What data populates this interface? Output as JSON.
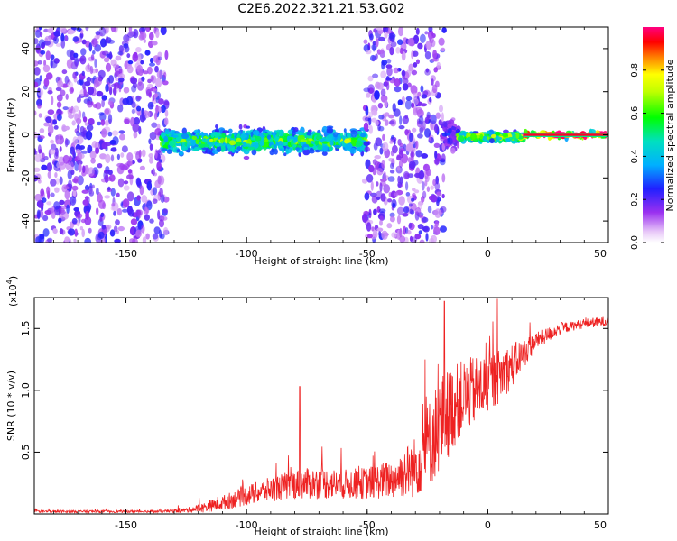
{
  "figure": {
    "title": "C2E6.2022.321.21.53.G02"
  },
  "colors": {
    "snr_line": "#ee2222",
    "spectrum_low": "#e8c8f8",
    "spectrum_mid": "#7a00e8",
    "spectrum_peak": "#ff0000"
  },
  "chart_data": [
    {
      "type": "heatmap",
      "title": "",
      "xlabel": "Height of straight line (km)",
      "ylabel": "Frequency (Hz)",
      "xlim": [
        -188,
        50
      ],
      "ylim": [
        -50,
        50
      ],
      "xticks": [
        -150,
        -100,
        -50,
        0,
        50
      ],
      "yticks": [
        -40,
        -20,
        0,
        20,
        40
      ],
      "xtick_labels": [
        "-150",
        "-100",
        "-50",
        "0",
        "50"
      ],
      "ytick_labels": [
        "-40",
        "-20",
        "0",
        "20",
        "40"
      ],
      "regions": [
        {
          "name": "noise-band",
          "x_range": [
            -188,
            -133
          ],
          "freq_range": [
            -50,
            50
          ],
          "amplitude": 0.15
        },
        {
          "name": "signal-band",
          "x_range": [
            -135,
            -50
          ],
          "freq_center": -3,
          "freq_halfwidth": 8,
          "amplitude": 0.5
        },
        {
          "name": "noise-band",
          "x_range": [
            -51,
            -18
          ],
          "freq_range": [
            -50,
            50
          ],
          "amplitude": 0.15
        },
        {
          "name": "transition",
          "x_range": [
            -18,
            -12
          ],
          "freq_center": 0,
          "freq_halfwidth": 12,
          "amplitude": 0.2
        },
        {
          "name": "signal-band",
          "x_range": [
            -12,
            15
          ],
          "freq_center": -1,
          "freq_halfwidth": 3,
          "amplitude": 0.6
        },
        {
          "name": "carrier-line",
          "x_range": [
            15,
            50
          ],
          "freq_center": 0,
          "freq_halfwidth": 2,
          "amplitude": 0.95
        }
      ],
      "colorbar": {
        "label": "Normalized spectral amplitude",
        "range": [
          0,
          1
        ],
        "ticks": [
          0.0,
          0.2,
          0.4,
          0.6,
          0.8
        ],
        "tick_labels": [
          "0.0",
          "0.2",
          "0.4",
          "0.6",
          "0.8"
        ]
      }
    },
    {
      "type": "line",
      "title": "",
      "xlabel": "Height of straight line (km)",
      "ylabel": "SNR (10 * v/v)",
      "yscale_label": "(x10",
      "yscale_exp": "4",
      "yscale_close": ")",
      "xlim": [
        -188,
        50
      ],
      "ylim": [
        0,
        1.75
      ],
      "xticks": [
        -150,
        -100,
        -50,
        0,
        50
      ],
      "yticks": [
        0.5,
        1.0,
        1.5
      ],
      "xtick_labels": [
        "-150",
        "-100",
        "-50",
        "0",
        "50"
      ],
      "ytick_labels": [
        "0.5",
        "1.0",
        "1.5"
      ],
      "series": [
        {
          "name": "SNR",
          "x": [
            -188,
            -170,
            -150,
            -135,
            -125,
            -118,
            -110,
            -100,
            -90,
            -80,
            -70,
            -60,
            -50,
            -40,
            -30,
            -25,
            -20,
            -15,
            -10,
            -5,
            0,
            5,
            10,
            15,
            20,
            25,
            30,
            35,
            40,
            45,
            50
          ],
          "mean": [
            0.02,
            0.02,
            0.02,
            0.02,
            0.03,
            0.05,
            0.09,
            0.15,
            0.2,
            0.24,
            0.25,
            0.24,
            0.25,
            0.28,
            0.38,
            0.55,
            0.72,
            0.85,
            0.95,
            1.0,
            1.05,
            1.12,
            1.2,
            1.3,
            1.4,
            1.45,
            1.5,
            1.52,
            1.54,
            1.55,
            1.56
          ],
          "noise": [
            0.01,
            0.01,
            0.01,
            0.01,
            0.02,
            0.04,
            0.06,
            0.08,
            0.1,
            0.12,
            0.13,
            0.12,
            0.13,
            0.16,
            0.25,
            0.35,
            0.4,
            0.35,
            0.3,
            0.28,
            0.25,
            0.22,
            0.18,
            0.12,
            0.07,
            0.06,
            0.05,
            0.04,
            0.04,
            0.04,
            0.04
          ],
          "spikes": [
            {
              "x": -78,
              "y": 1.03
            },
            {
              "x": -26,
              "y": 1.25
            },
            {
              "x": -18,
              "y": 1.72
            },
            {
              "x": 4,
              "y": 1.74
            }
          ]
        }
      ]
    }
  ]
}
